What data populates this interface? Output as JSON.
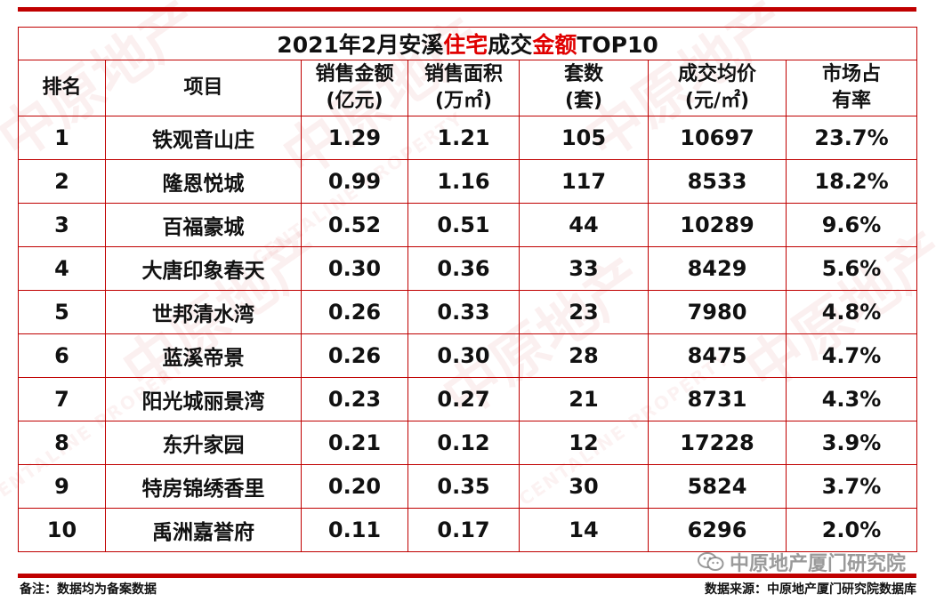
{
  "table": {
    "title_parts": [
      "2021年2月安溪",
      "住宅",
      "成交",
      "金额",
      "TOP10"
    ],
    "headers": [
      {
        "line1": "排名",
        "line2": ""
      },
      {
        "line1": "项目",
        "line2": ""
      },
      {
        "line1": "销售金额",
        "line2": "(亿元)"
      },
      {
        "line1": "销售面积",
        "line2": "(万㎡)"
      },
      {
        "line1": "套数",
        "line2": "(套)"
      },
      {
        "line1": "成交均价",
        "line2": "(元/㎡)"
      },
      {
        "line1": "市场占",
        "line2": "有率"
      }
    ],
    "rows": [
      [
        "1",
        "铁观音山庄",
        "1.29",
        "1.21",
        "105",
        "10697",
        "23.7%"
      ],
      [
        "2",
        "隆恩悦城",
        "0.99",
        "1.16",
        "117",
        "8533",
        "18.2%"
      ],
      [
        "3",
        "百福豪城",
        "0.52",
        "0.51",
        "44",
        "10289",
        "9.6%"
      ],
      [
        "4",
        "大唐印象春天",
        "0.30",
        "0.36",
        "33",
        "8429",
        "5.6%"
      ],
      [
        "5",
        "世邦清水湾",
        "0.26",
        "0.33",
        "23",
        "7980",
        "4.8%"
      ],
      [
        "6",
        "蓝溪帝景",
        "0.26",
        "0.30",
        "28",
        "8475",
        "4.7%"
      ],
      [
        "7",
        "阳光城丽景湾",
        "0.23",
        "0.27",
        "21",
        "8731",
        "4.3%"
      ],
      [
        "8",
        "东升家园",
        "0.21",
        "0.12",
        "12",
        "17228",
        "3.9%"
      ],
      [
        "9",
        "特房锦绣香里",
        "0.20",
        "0.35",
        "30",
        "5824",
        "3.7%"
      ],
      [
        "10",
        "禹洲嘉誉府",
        "0.11",
        "0.17",
        "14",
        "6296",
        "2.0%"
      ]
    ]
  },
  "footer": {
    "note": "备注：数据均为备案数据",
    "source": "数据来源：中原地产厦门研究院数据库"
  },
  "brand": {
    "text": "中原地产厦门研究院",
    "icon": "wechat-icon"
  },
  "watermark": {
    "text_cn": "中原地产",
    "text_en": "CENTALINE PROPERTY"
  },
  "colors": {
    "accent": "#c00000",
    "title_highlight": "#e00000"
  }
}
